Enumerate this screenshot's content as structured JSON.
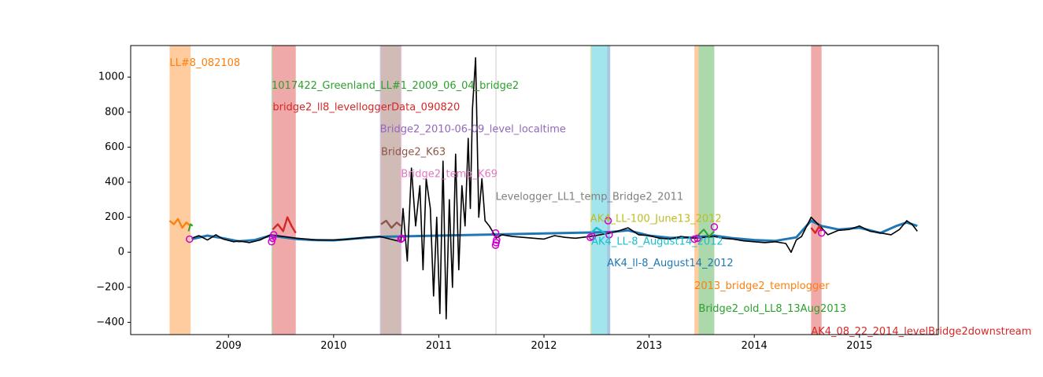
{
  "chart_data": {
    "type": "line",
    "title": "",
    "xlabel": "",
    "ylabel": "",
    "xlim": [
      2008.07,
      2015.75
    ],
    "ylim": [
      -470,
      1180
    ],
    "x_ticks": [
      2009,
      2010,
      2011,
      2012,
      2013,
      2014,
      2015
    ],
    "y_ticks": [
      -400,
      -200,
      0,
      200,
      400,
      600,
      800,
      1000
    ],
    "grid": false,
    "colors": {
      "main_line": "#000000",
      "blue": "#1f77b4",
      "orange": "#ff7f0e",
      "green": "#2ca02c",
      "red": "#d62728",
      "purple": "#9467bd",
      "brown": "#8c564b",
      "pink": "#e377c2",
      "gray": "#7f7f7f",
      "olive": "#bcbd22",
      "cyan": "#17becf",
      "marker": "#cc00cc"
    },
    "spans": [
      {
        "label": "LL#8_082108",
        "x0": 2008.44,
        "x1": 2008.64,
        "color": "#ff7f0e",
        "label_y": 1080
      },
      {
        "label": "1017422_Greenland_LL#1_2009_06_04_bridge2",
        "x0": 2009.41,
        "x1": 2009.42,
        "color": "#2ca02c",
        "label_y": 950
      },
      {
        "label": "bridge2_ll8_levelloggerData_090820",
        "x0": 2009.42,
        "x1": 2009.64,
        "color": "#d62728",
        "label_y": 825
      },
      {
        "label": "Bridge2_2010-06-09_level_localtime",
        "x0": 2010.44,
        "x1": 2010.45,
        "color": "#9467bd",
        "label_y": 700
      },
      {
        "label": "Bridge2_K63",
        "x0": 2010.45,
        "x1": 2010.64,
        "color": "#8c564b",
        "label_y": 570
      },
      {
        "label": "Bridge2_temp_K69",
        "x0": 2010.64,
        "x1": 2010.645,
        "color": "#e377c2",
        "label_y": 445
      },
      {
        "label": "Levelogger_LL1_temp_Bridge2_2011",
        "x0": 2011.54,
        "x1": 2011.545,
        "color": "#7f7f7f",
        "label_y": 315
      },
      {
        "label": "AK4_LL-100_June13_2012",
        "x0": 2012.44,
        "x1": 2012.45,
        "color": "#bcbd22",
        "label_y": 190
      },
      {
        "label": "AK4_LL-8_August14_2012",
        "x0": 2012.45,
        "x1": 2012.6,
        "color": "#17becf",
        "label_y": 60
      },
      {
        "label": "AK4_ll-8_August14_2012",
        "x0": 2012.6,
        "x1": 2012.63,
        "color": "#1f77b4",
        "label_y": -65
      },
      {
        "label": "2013_bridge2_templogger",
        "x0": 2013.43,
        "x1": 2013.47,
        "color": "#ff7f0e",
        "label_y": -195
      },
      {
        "label": "Bridge2_old_LL8_13Aug2013",
        "x0": 2013.47,
        "x1": 2013.62,
        "color": "#2ca02c",
        "label_y": -325
      },
      {
        "label": "AK4_08_22_2014_levelBridge2downstream",
        "x0": 2014.54,
        "x1": 2014.64,
        "color": "#d62728",
        "label_y": -455
      }
    ],
    "series": [
      {
        "style": "blue-underlay",
        "x": [
          2008.65,
          2008.8,
          2008.95,
          2009.1,
          2009.25,
          2009.4,
          2009.65,
          2009.8,
          2010.0,
          2010.2,
          2010.44,
          2012.63,
          2012.8,
          2013.0,
          2013.2,
          2013.43,
          2013.62,
          2013.8,
          2014.0,
          2014.2,
          2014.4,
          2014.54,
          2014.64,
          2014.8,
          2015.0,
          2015.2,
          2015.35,
          2015.45,
          2015.55
        ],
        "y": [
          75,
          95,
          80,
          62,
          70,
          95,
          75,
          70,
          68,
          78,
          88,
          115,
          125,
          95,
          82,
          85,
          95,
          80,
          70,
          65,
          85,
          180,
          150,
          130,
          140,
          110,
          150,
          170,
          150
        ]
      },
      {
        "style": "black-main",
        "x": [
          2008.65,
          2008.72,
          2008.8,
          2008.88,
          2008.95,
          2009.05,
          2009.1,
          2009.2,
          2009.3,
          2009.4,
          2009.65,
          2009.75,
          2009.85,
          2010.0,
          2010.1,
          2010.2,
          2010.3,
          2010.44,
          2010.64,
          2010.66,
          2010.7,
          2010.74,
          2010.78,
          2010.82,
          2010.85,
          2010.88,
          2010.92,
          2010.95,
          2010.98,
          2011.01,
          2011.04,
          2011.07,
          2011.1,
          2011.13,
          2011.16,
          2011.19,
          2011.22,
          2011.25,
          2011.28,
          2011.3,
          2011.32,
          2011.35,
          2011.38,
          2011.41,
          2011.44,
          2011.48,
          2011.52,
          2011.545,
          2011.6,
          2011.7,
          2011.8,
          2011.9,
          2012.0,
          2012.1,
          2012.2,
          2012.3,
          2012.44,
          2012.63,
          2012.7,
          2012.8,
          2012.9,
          2013.0,
          2013.1,
          2013.2,
          2013.3,
          2013.43,
          2013.62,
          2013.7,
          2013.8,
          2013.9,
          2014.0,
          2014.1,
          2014.2,
          2014.3,
          2014.35,
          2014.4,
          2014.45,
          2014.54,
          2014.64,
          2014.7,
          2014.8,
          2014.9,
          2015.0,
          2015.1,
          2015.2,
          2015.3,
          2015.38,
          2015.45,
          2015.5,
          2015.55
        ],
        "y": [
          80,
          95,
          70,
          100,
          75,
          60,
          65,
          55,
          70,
          100,
          80,
          75,
          70,
          70,
          72,
          78,
          85,
          90,
          60,
          250,
          -50,
          480,
          150,
          380,
          -100,
          420,
          250,
          -250,
          200,
          -350,
          520,
          -380,
          300,
          -200,
          560,
          -100,
          380,
          150,
          650,
          250,
          820,
          1110,
          200,
          420,
          180,
          150,
          110,
          80,
          100,
          90,
          85,
          80,
          75,
          95,
          85,
          80,
          90,
          110,
          120,
          140,
          100,
          95,
          80,
          75,
          90,
          80,
          90,
          80,
          75,
          65,
          60,
          55,
          60,
          50,
          0,
          70,
          90,
          200,
          140,
          100,
          125,
          130,
          150,
          120,
          110,
          100,
          130,
          180,
          160,
          120
        ]
      },
      {
        "style": "orange",
        "x": [
          2008.44,
          2008.48,
          2008.52,
          2008.56,
          2008.6,
          2008.64
        ],
        "y": [
          180,
          160,
          190,
          140,
          170,
          150
        ]
      },
      {
        "style": "green",
        "x": [
          2008.62,
          2008.64,
          2008.66
        ],
        "y": [
          120,
          160,
          150
        ]
      },
      {
        "style": "red",
        "x": [
          2009.42,
          2009.47,
          2009.52,
          2009.56,
          2009.6,
          2009.64
        ],
        "y": [
          130,
          160,
          120,
          200,
          150,
          110
        ]
      },
      {
        "style": "brown",
        "x": [
          2010.45,
          2010.5,
          2010.55,
          2010.6,
          2010.64
        ],
        "y": [
          160,
          180,
          140,
          170,
          150
        ]
      },
      {
        "style": "cyan",
        "x": [
          2012.45,
          2012.5,
          2012.55,
          2012.6
        ],
        "y": [
          110,
          140,
          120,
          100
        ]
      },
      {
        "style": "green",
        "x": [
          2013.47,
          2013.52,
          2013.57,
          2013.62
        ],
        "y": [
          100,
          130,
          90,
          120
        ]
      },
      {
        "style": "red",
        "x": [
          2014.54,
          2014.58,
          2014.62,
          2014.64
        ],
        "y": [
          140,
          110,
          150,
          120
        ]
      }
    ],
    "markers": [
      {
        "x": 2008.63,
        "y": 75
      },
      {
        "x": 2009.41,
        "y": 60
      },
      {
        "x": 2009.42,
        "y": 80
      },
      {
        "x": 2009.43,
        "y": 100
      },
      {
        "x": 2010.64,
        "y": 75
      },
      {
        "x": 2010.65,
        "y": 80
      },
      {
        "x": 2011.54,
        "y": 40
      },
      {
        "x": 2011.545,
        "y": 55
      },
      {
        "x": 2011.55,
        "y": 70
      },
      {
        "x": 2011.54,
        "y": 110
      },
      {
        "x": 2012.44,
        "y": 85
      },
      {
        "x": 2012.46,
        "y": 90
      },
      {
        "x": 2012.62,
        "y": 100
      },
      {
        "x": 2012.61,
        "y": 180
      },
      {
        "x": 2013.43,
        "y": 75
      },
      {
        "x": 2013.46,
        "y": 80
      },
      {
        "x": 2013.62,
        "y": 145
      },
      {
        "x": 2014.64,
        "y": 110
      }
    ]
  }
}
